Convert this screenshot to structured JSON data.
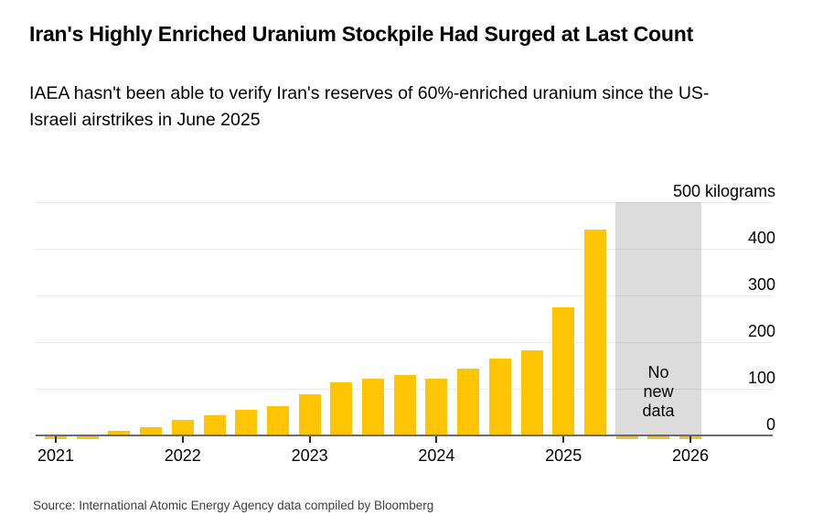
{
  "header": {
    "title": "Iran's Highly Enriched Uranium Stockpile Had Surged at Last Count",
    "subtitle": "IAEA hasn't been able to verify Iran's reserves of 60%-enriched uranium since the US-Israeli airstrikes in June 2025"
  },
  "footer": {
    "source": "Source: International Atomic Energy Agency data compiled by Bloomberg"
  },
  "chart_data": {
    "type": "bar",
    "title": "Iran's Highly Enriched Uranium Stockpile Had Surged at Last Count",
    "subtitle": "IAEA hasn't been able to verify Iran's reserves of 60%-enriched uranium since the US-Israeli airstrikes in June 2025",
    "source": "Source: International Atomic Energy Agency data compiled by Bloomberg",
    "unit_label": "500 kilograms",
    "ylabel": "kilograms",
    "ylim": [
      0,
      500
    ],
    "y_ticks": [
      0,
      100,
      200,
      300,
      400,
      500
    ],
    "x_ticks": [
      "2021",
      "2022",
      "2023",
      "2024",
      "2025",
      "2026"
    ],
    "grid": "horizontal",
    "legend": "none",
    "bar_color": "#ffc404",
    "axis_label_position": "right",
    "points": [
      {
        "date": "Feb 2021",
        "kg": 0
      },
      {
        "date": "May 2021",
        "kg": 2.4
      },
      {
        "date": "Aug 2021",
        "kg": 10
      },
      {
        "date": "Nov 2021",
        "kg": 17.7
      },
      {
        "date": "Feb 2022",
        "kg": 33.2
      },
      {
        "date": "May 2022",
        "kg": 43.1
      },
      {
        "date": "Aug 2022",
        "kg": 55.6
      },
      {
        "date": "Nov 2022",
        "kg": 62.3
      },
      {
        "date": "Feb 2023",
        "kg": 87.5
      },
      {
        "date": "May 2023",
        "kg": 114.1
      },
      {
        "date": "Sep 2023",
        "kg": 121.6
      },
      {
        "date": "Nov 2023",
        "kg": 128.3
      },
      {
        "date": "Feb 2024",
        "kg": 121.5
      },
      {
        "date": "May 2024",
        "kg": 142.1
      },
      {
        "date": "Aug 2024",
        "kg": 164.7
      },
      {
        "date": "Nov 2024",
        "kg": 182.3
      },
      {
        "date": "Feb 2025",
        "kg": 274.8
      },
      {
        "date": "Jun 2025",
        "kg": 440.9
      },
      {
        "date": "Aug 2025",
        "kg": null,
        "no_data": true
      },
      {
        "date": "Nov 2025",
        "kg": null,
        "no_data": true
      },
      {
        "date": "Feb 2026",
        "kg": null,
        "no_data": true
      }
    ],
    "no_data_band": {
      "label": "No new data",
      "color": "#dcdcdc",
      "covers": [
        "Aug 2025",
        "Nov 2025",
        "Feb 2026"
      ]
    }
  }
}
